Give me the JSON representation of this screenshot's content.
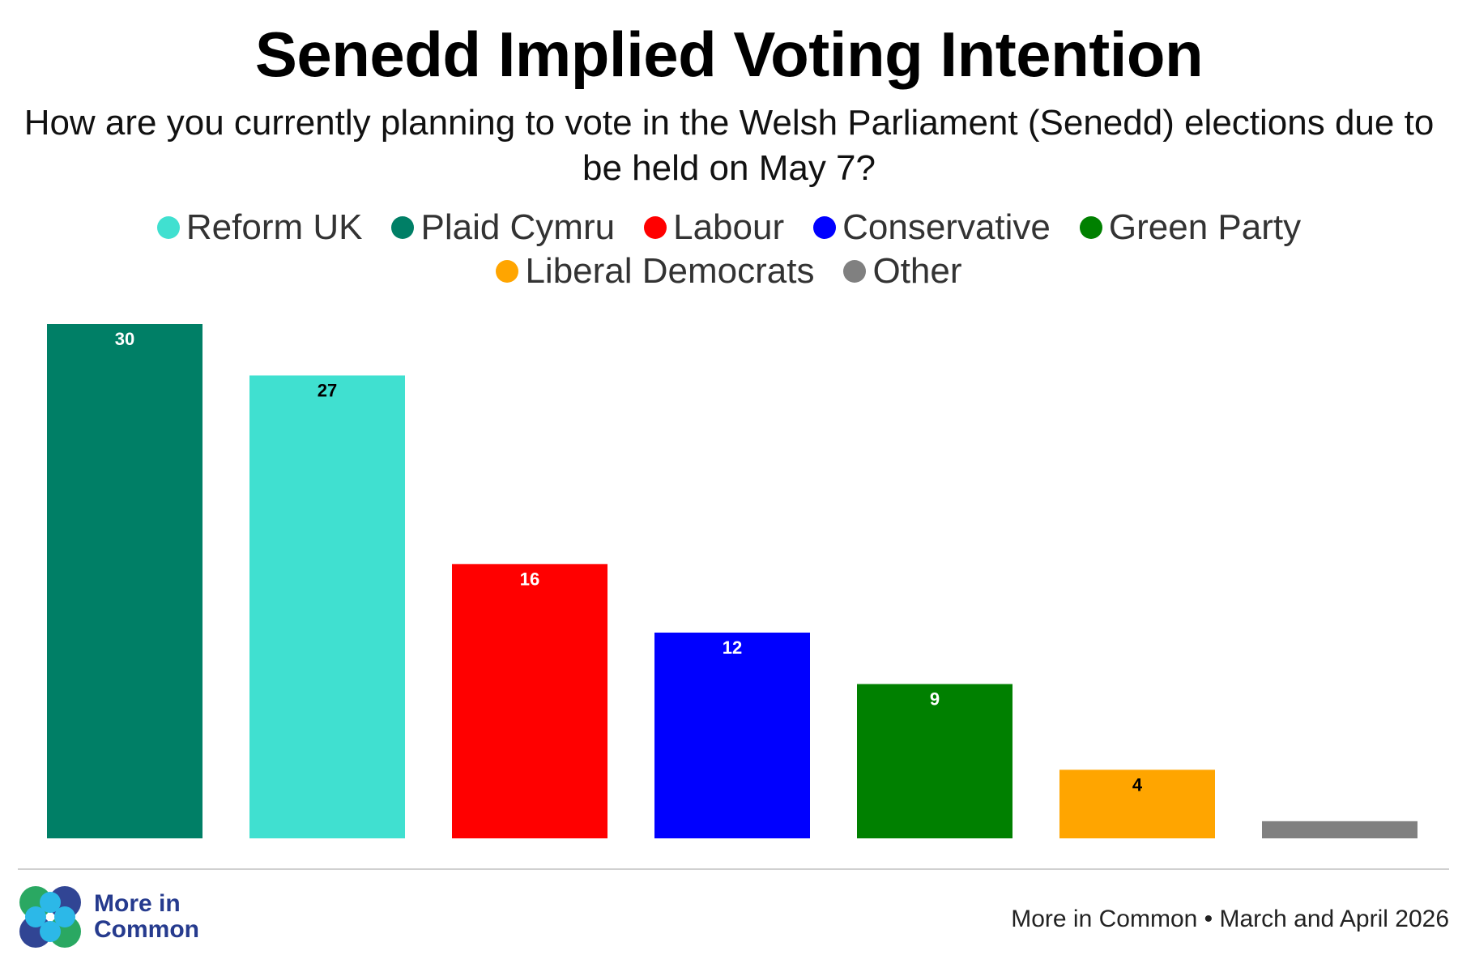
{
  "chart_data": {
    "type": "bar",
    "title": "Senedd Implied Voting Intention",
    "subtitle": "How are you currently planning to vote in the Welsh Parliament (Senedd) elections due to be held on May 7?",
    "categories": [
      "Plaid Cymru",
      "Reform UK",
      "Labour",
      "Conservative",
      "Green Party",
      "Liberal Democrats",
      "Other"
    ],
    "values": [
      30,
      27,
      16,
      12,
      9,
      4,
      1
    ],
    "data_labels": [
      "30",
      "27",
      "16",
      "12",
      "9",
      "4",
      ""
    ],
    "colors": [
      "#007f66",
      "#40e0d0",
      "#ff0000",
      "#0000ff",
      "#008000",
      "#ffa500",
      "#808080"
    ],
    "label_colors": [
      "#ffffff",
      "#000000",
      "#ffffff",
      "#ffffff",
      "#ffffff",
      "#000000",
      "#ffffff"
    ],
    "legend": [
      {
        "name": "Reform UK",
        "color": "#40e0d0"
      },
      {
        "name": "Plaid Cymru",
        "color": "#007f66"
      },
      {
        "name": "Labour",
        "color": "#ff0000"
      },
      {
        "name": "Conservative",
        "color": "#0000ff"
      },
      {
        "name": "Green Party",
        "color": "#008000"
      },
      {
        "name": "Liberal Democrats",
        "color": "#ffa500"
      },
      {
        "name": "Other",
        "color": "#808080"
      }
    ],
    "legend_position": "top",
    "ylim": [
      0,
      30
    ],
    "grid": false,
    "xlabel": "",
    "ylabel": ""
  },
  "footer": {
    "logo_text": "More in Common",
    "source": "More in Common • March and April 2026"
  },
  "colors": {
    "logo_navy": "#263b8e",
    "logo_green": "#1fa35a",
    "logo_sky": "#2cb8e8"
  }
}
